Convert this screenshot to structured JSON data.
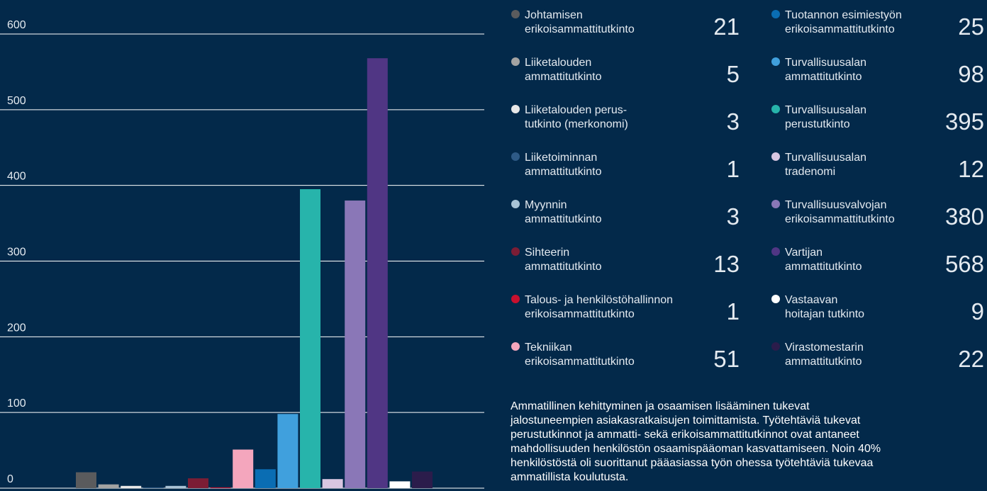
{
  "chart_data": {
    "type": "bar",
    "categories": [
      [
        "Johtamisen",
        "erikoisammattitutkinto"
      ],
      [
        "Liiketalouden",
        "ammattitutkinto"
      ],
      [
        "Liiketalouden perus-",
        "tutkinto (merkonomi)"
      ],
      [
        "Liiketoiminnan",
        "ammattitutkinto"
      ],
      [
        "Myynnin",
        "ammattitutkinto"
      ],
      [
        "Sihteerin",
        "ammattitutkinto"
      ],
      [
        "Talous- ja henkilöstöhallinnon",
        "erikoisammattitutkinto"
      ],
      [
        "Tekniikan",
        "erikoisammattitutkinto"
      ],
      [
        "Tuotannon esimiestyön",
        "erikoisammattitutkinto"
      ],
      [
        "Turvallisuusalan",
        "ammattitutkinto"
      ],
      [
        "Turvallisuusalan",
        "perustutkinto"
      ],
      [
        "Turvallisuusalan",
        "tradenomi"
      ],
      [
        "Turvallisuusvalvojan",
        "erikoisammattitutkinto"
      ],
      [
        "Vartijan",
        "ammattitutkinto"
      ],
      [
        "Vastaavan",
        "hoitajan tutkinto"
      ],
      [
        "Virastomestarin",
        "ammattitutkinto"
      ]
    ],
    "values": [
      21,
      5,
      3,
      1,
      3,
      13,
      1,
      51,
      25,
      98,
      395,
      12,
      380,
      568,
      9,
      22
    ],
    "colors": [
      "#5a5b5d",
      "#a3a3a2",
      "#e8e8e8",
      "#2e5a86",
      "#a9c3d6",
      "#7b1d35",
      "#c8102e",
      "#f4a6bd",
      "#0a6db3",
      "#40a0dd",
      "#27b4ab",
      "#d8c6e1",
      "#8a77b7",
      "#503684",
      "#ffffff",
      "#2b1c4b"
    ],
    "ylim": [
      0,
      600
    ],
    "yticks": [
      0,
      100,
      200,
      300,
      400,
      500,
      600
    ],
    "grid": true
  },
  "text": {
    "lines": [
      "Ammatillinen kehittyminen ja osaamisen lisääminen tukevat",
      "jalostuneempien asiakasratkaisujen toimittamista. Työtehtäviä tukevat",
      "perustutkinnot ja ammatti- sekä erikoisammattitutkinnot ovat antaneet",
      "mahdollisuuden henkilöstön osaamispääoman kasvattamiseen. Noin 40%",
      "henkilöstöstä oli suorittanut pääasiassa työn ohessa työtehtäviä tukevaa",
      "ammatillista koulutusta."
    ]
  }
}
